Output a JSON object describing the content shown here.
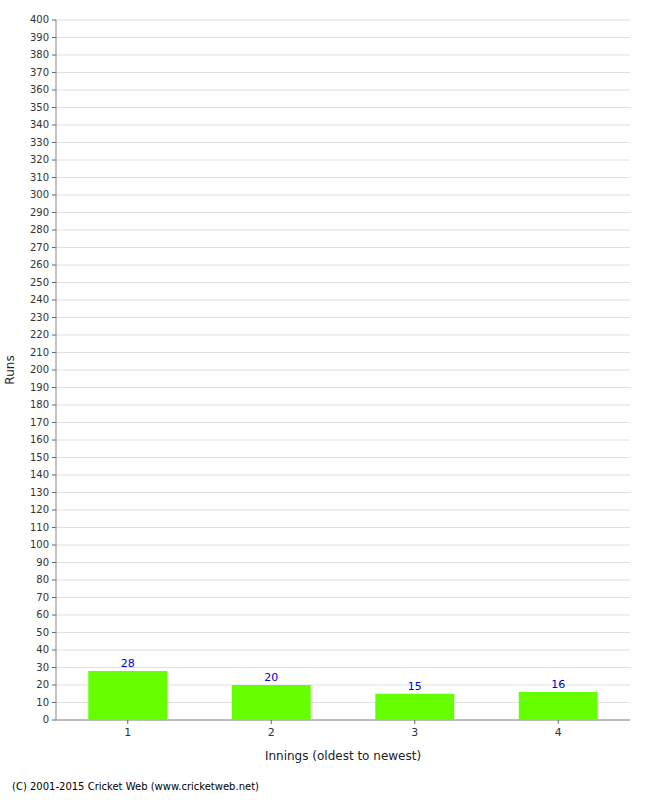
{
  "chart_data": {
    "type": "bar",
    "categories": [
      1,
      2,
      3,
      4
    ],
    "values": [
      28,
      20,
      15,
      16
    ],
    "color": "#66ff00",
    "xlabel": "Innings (oldest to newest)",
    "ylabel": "Runs",
    "ylim": [
      0,
      400
    ],
    "yticks": [
      0,
      10,
      20,
      30,
      40,
      50,
      60,
      70,
      80,
      90,
      100,
      110,
      120,
      130,
      140,
      150,
      160,
      170,
      180,
      190,
      200,
      210,
      220,
      230,
      240,
      250,
      260,
      270,
      280,
      290,
      300,
      310,
      320,
      330,
      340,
      350,
      360,
      370,
      380,
      390,
      400
    ],
    "grid": true,
    "data_labels": true,
    "annotations": [
      "(C) 2001-2015 Cricket Web (www.cricketweb.net)"
    ]
  }
}
